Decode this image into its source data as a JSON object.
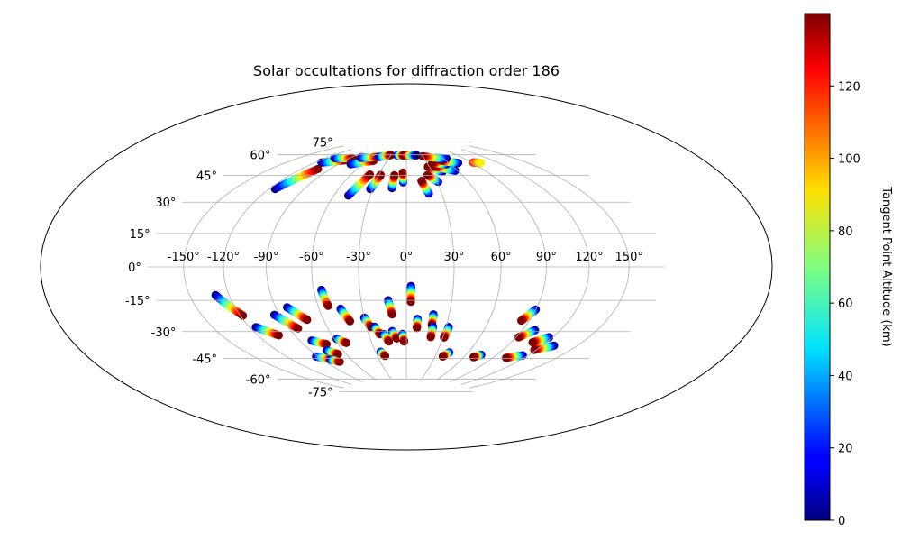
{
  "chart_data": {
    "type": "scatter",
    "projection": "hammer",
    "title": "Solar occultations for diffraction order 186",
    "grid": true,
    "colormap": "jet",
    "lon_tick_labels": [
      "-150°",
      "-120°",
      "-90°",
      "-60°",
      "-30°",
      "0°",
      "30°",
      "60°",
      "90°",
      "120°",
      "150°"
    ],
    "lon_ticks": [
      -150,
      -120,
      -90,
      -60,
      -30,
      0,
      30,
      60,
      90,
      120,
      150
    ],
    "lat_tick_labels": [
      "-75°",
      "-60°",
      "-45°",
      "-30°",
      "-15°",
      "0°",
      "15°",
      "30°",
      "45°",
      "60°",
      "75°"
    ],
    "lat_ticks": [
      -75,
      -60,
      -45,
      -30,
      -15,
      0,
      15,
      30,
      45,
      60,
      75
    ],
    "colorbar": {
      "label": "Tangent Point Altitude (km)",
      "range": [
        0,
        140
      ],
      "tick_labels": [
        "0",
        "20",
        "40",
        "60",
        "80",
        "100",
        "120"
      ],
      "ticks": [
        0,
        20,
        40,
        60,
        80,
        100,
        120
      ]
    },
    "tracks": [
      {
        "start": [
          -115,
          45
        ],
        "end": [
          -103,
          60
        ],
        "alt": [
          0,
          140
        ]
      },
      {
        "start": [
          -113,
          64
        ],
        "end": [
          -90,
          68
        ],
        "alt": [
          0,
          140
        ]
      },
      {
        "start": [
          -110,
          68
        ],
        "end": [
          -85,
          70
        ],
        "alt": [
          0,
          140
        ]
      },
      {
        "start": [
          -75,
          66
        ],
        "end": [
          -50,
          70
        ],
        "alt": [
          0,
          140
        ]
      },
      {
        "start": [
          -75,
          71
        ],
        "end": [
          -50,
          73
        ],
        "alt": [
          0,
          140
        ]
      },
      {
        "start": [
          -48,
          73
        ],
        "end": [
          -30,
          75
        ],
        "alt": [
          0,
          140
        ]
      },
      {
        "start": [
          -48,
          45
        ],
        "end": [
          -40,
          60
        ],
        "alt": [
          0,
          140
        ]
      },
      {
        "start": [
          -32,
          50
        ],
        "end": [
          -28,
          60
        ],
        "alt": [
          0,
          140
        ]
      },
      {
        "start": [
          -13,
          51
        ],
        "end": [
          -13,
          60
        ],
        "alt": [
          0,
          140
        ]
      },
      {
        "start": [
          -3,
          55
        ],
        "end": [
          -4,
          62
        ],
        "alt": [
          0,
          140
        ]
      },
      {
        "start": [
          -18,
          75
        ],
        "end": [
          -5,
          75
        ],
        "alt": [
          0,
          140
        ]
      },
      {
        "start": [
          0,
          75
        ],
        "end": [
          20,
          75
        ],
        "alt": [
          140,
          0
        ]
      },
      {
        "start": [
          19,
          47
        ],
        "end": [
          15,
          56
        ],
        "alt": [
          0,
          140
        ]
      },
      {
        "start": [
          31,
          55
        ],
        "end": [
          23,
          60
        ],
        "alt": [
          0,
          140
        ]
      },
      {
        "start": [
          42,
          62
        ],
        "end": [
          28,
          66
        ],
        "alt": [
          0,
          140
        ]
      },
      {
        "start": [
          57,
          62
        ],
        "end": [
          37,
          66
        ],
        "alt": [
          0,
          140
        ]
      },
      {
        "start": [
          55,
          67
        ],
        "end": [
          38,
          69
        ],
        "alt": [
          0,
          140
        ]
      },
      {
        "start": [
          72,
          67
        ],
        "end": [
          53,
          70
        ],
        "alt": [
          0,
          140
        ]
      },
      {
        "start": [
          65,
          71
        ],
        "end": [
          30,
          74
        ],
        "alt": [
          0,
          140
        ]
      },
      {
        "start": [
          92,
          66
        ],
        "end": [
          100,
          65
        ],
        "alt": [
          120,
          90
        ]
      },
      {
        "start": [
          -130,
          -15
        ],
        "end": [
          -118,
          -27
        ],
        "alt": [
          0,
          140
        ]
      },
      {
        "start": [
          -115,
          -34
        ],
        "end": [
          -103,
          -40
        ],
        "alt": [
          0,
          140
        ]
      },
      {
        "start": [
          -94,
          -28
        ],
        "end": [
          -83,
          -37
        ],
        "alt": [
          0,
          140
        ]
      },
      {
        "start": [
          -82,
          -24
        ],
        "end": [
          -72,
          -32
        ],
        "alt": [
          0,
          140
        ]
      },
      {
        "start": [
          -55,
          -14
        ],
        "end": [
          -53,
          -24
        ],
        "alt": [
          0,
          140
        ]
      },
      {
        "start": [
          -45,
          -26
        ],
        "end": [
          -41,
          -34
        ],
        "alt": [
          0,
          140
        ]
      },
      {
        "start": [
          -30,
          -32
        ],
        "end": [
          -27,
          -38
        ],
        "alt": [
          0,
          140
        ]
      },
      {
        "start": [
          -24,
          -38
        ],
        "end": [
          -21,
          -43
        ],
        "alt": [
          0,
          140
        ]
      },
      {
        "start": [
          -12,
          -21
        ],
        "end": [
          -10,
          -30
        ],
        "alt": [
          0,
          140
        ]
      },
      {
        "start": [
          -11,
          -41
        ],
        "end": [
          -8,
          -46
        ],
        "alt": [
          0,
          140
        ]
      },
      {
        "start": [
          3,
          -12
        ],
        "end": [
          3,
          -22
        ],
        "alt": [
          0,
          140
        ]
      },
      {
        "start": [
          8,
          -33
        ],
        "end": [
          8,
          -39
        ],
        "alt": [
          0,
          140
        ]
      },
      {
        "start": [
          19,
          -30
        ],
        "end": [
          19,
          -37
        ],
        "alt": [
          0,
          140
        ]
      },
      {
        "start": [
          20,
          -38
        ],
        "end": [
          20,
          -45
        ],
        "alt": [
          0,
          140
        ]
      },
      {
        "start": [
          32,
          -38
        ],
        "end": [
          31,
          -45
        ],
        "alt": [
          0,
          140
        ]
      },
      {
        "start": [
          42,
          -55
        ],
        "end": [
          38,
          -58
        ],
        "alt": [
          0,
          140
        ]
      },
      {
        "start": [
          90,
          -25
        ],
        "end": [
          84,
          -32
        ],
        "alt": [
          0,
          140
        ]
      },
      {
        "start": [
          100,
          -37
        ],
        "end": [
          92,
          -42
        ],
        "alt": [
          0,
          140
        ]
      },
      {
        "start": [
          117,
          -40
        ],
        "end": [
          108,
          -44
        ],
        "alt": [
          0,
          140
        ]
      },
      {
        "start": [
          130,
          -44
        ],
        "end": [
          118,
          -48
        ],
        "alt": [
          0,
          140
        ]
      },
      {
        "start": [
          115,
          -52
        ],
        "end": [
          103,
          -55
        ],
        "alt": [
          0,
          140
        ]
      },
      {
        "start": [
          75,
          -55
        ],
        "end": [
          70,
          -57
        ],
        "alt": [
          0,
          140
        ]
      },
      {
        "start": [
          -80,
          -45
        ],
        "end": [
          -70,
          -48
        ],
        "alt": [
          0,
          140
        ]
      },
      {
        "start": [
          -58,
          -45
        ],
        "end": [
          -52,
          -48
        ],
        "alt": [
          0,
          140
        ]
      },
      {
        "start": [
          -92,
          -55
        ],
        "end": [
          -80,
          -58
        ],
        "alt": [
          0,
          140
        ]
      },
      {
        "start": [
          -75,
          -52
        ],
        "end": [
          -68,
          -55
        ],
        "alt": [
          0,
          140
        ]
      },
      {
        "start": [
          -82,
          -58
        ],
        "end": [
          -75,
          -60
        ],
        "alt": [
          0,
          140
        ]
      },
      {
        "start": [
          -25,
          -55
        ],
        "end": [
          -22,
          -58
        ],
        "alt": [
          0,
          140
        ]
      },
      {
        "start": [
          -18,
          -43
        ],
        "end": [
          -15,
          -48
        ],
        "alt": [
          0,
          140
        ]
      },
      {
        "start": [
          -3,
          -43
        ],
        "end": [
          -2,
          -48
        ],
        "alt": [
          0,
          140
        ]
      }
    ]
  }
}
